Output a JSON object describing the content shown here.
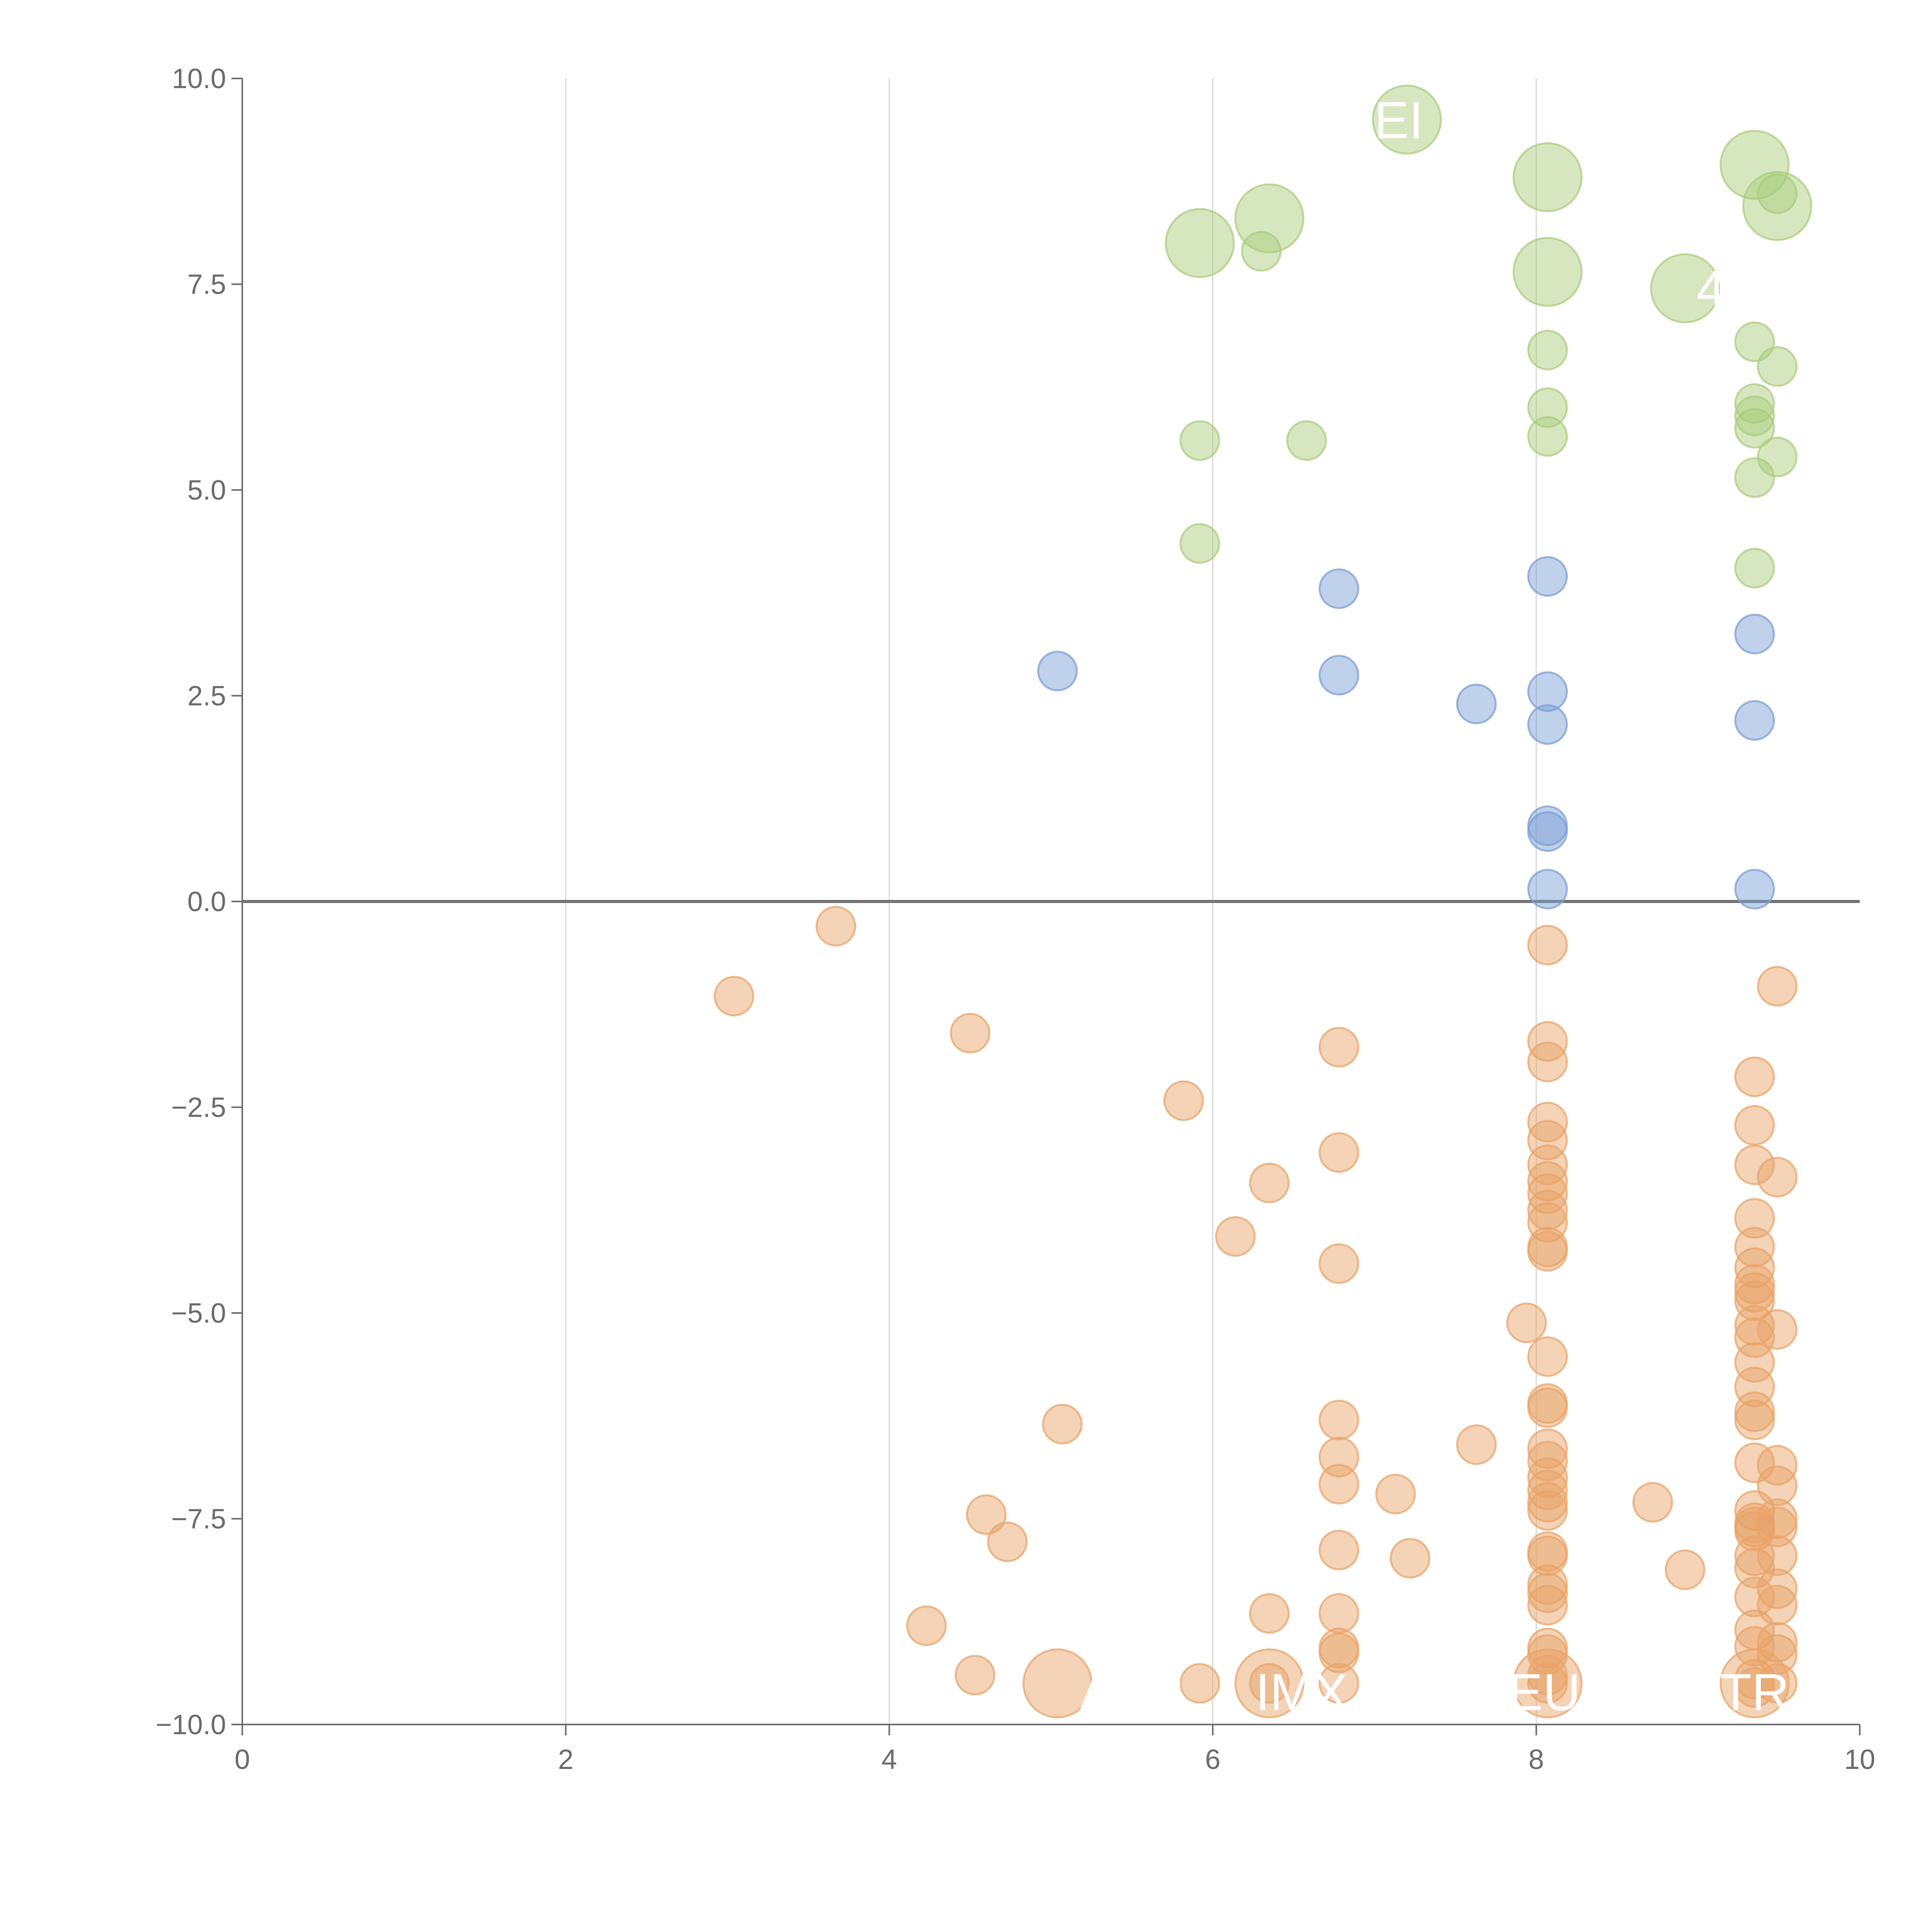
{
  "chart_data": {
    "type": "scatter",
    "title": "",
    "xlabel": "",
    "ylabel": "",
    "xlim": [
      0,
      10
    ],
    "ylim": [
      -10,
      10
    ],
    "x_ticks": [
      0,
      2,
      4,
      6,
      8,
      10
    ],
    "y_ticks": [
      10,
      7.5,
      5,
      2.5,
      0,
      -2.5,
      -5,
      -7.5,
      -10
    ],
    "x_tick_labels": [
      "0",
      "2",
      "4",
      "6",
      "8",
      "10"
    ],
    "y_tick_labels": [
      "10.0",
      "7.5",
      "5.0",
      "2.5",
      "0.0",
      "−2.5",
      "−5.0",
      "−7.5",
      "−10.0"
    ],
    "vertical_grid": [
      2,
      4,
      6,
      8
    ],
    "zero_line": 0,
    "colors": {
      "green": "#a9cd7c",
      "blue": "#7b9fd6",
      "orange": "#e9a468"
    },
    "series": [
      {
        "name": "green",
        "color_key": "green",
        "size": "small",
        "points": [
          [
            6.3,
            7.9
          ],
          [
            5.92,
            5.6
          ],
          [
            6.58,
            5.6
          ],
          [
            5.92,
            4.35
          ],
          [
            8.07,
            6.7
          ],
          [
            8.07,
            6.0
          ],
          [
            8.07,
            5.65
          ],
          [
            9.35,
            6.8
          ],
          [
            9.49,
            6.5
          ],
          [
            9.35,
            6.05
          ],
          [
            9.35,
            5.9
          ],
          [
            9.35,
            5.75
          ],
          [
            9.49,
            5.4
          ],
          [
            9.35,
            5.15
          ],
          [
            9.35,
            4.05
          ],
          [
            9.49,
            8.6
          ]
        ]
      },
      {
        "name": "green-large",
        "color_key": "green",
        "size": "large",
        "points": [
          [
            7.2,
            9.5
          ],
          [
            8.07,
            8.8
          ],
          [
            9.35,
            8.95
          ],
          [
            9.49,
            8.45
          ],
          [
            6.35,
            8.3
          ],
          [
            5.92,
            8.0
          ],
          [
            8.07,
            7.65
          ],
          [
            8.92,
            7.45
          ]
        ]
      },
      {
        "name": "blue",
        "color_key": "blue",
        "size": "small",
        "points": [
          [
            5.04,
            2.8
          ],
          [
            6.78,
            3.8
          ],
          [
            6.78,
            2.75
          ],
          [
            7.63,
            2.4
          ],
          [
            8.07,
            3.95
          ],
          [
            8.07,
            2.55
          ],
          [
            8.07,
            2.15
          ],
          [
            8.07,
            0.92
          ],
          [
            8.07,
            0.85
          ],
          [
            8.07,
            0.15
          ],
          [
            9.35,
            3.25
          ],
          [
            9.35,
            2.2
          ],
          [
            9.35,
            0.15
          ]
        ]
      },
      {
        "name": "orange",
        "color_key": "orange",
        "size": "small",
        "points": [
          [
            3.67,
            -0.3
          ],
          [
            3.04,
            -1.15
          ],
          [
            4.5,
            -1.6
          ],
          [
            5.82,
            -2.42
          ],
          [
            6.35,
            -3.42
          ],
          [
            6.14,
            -4.07
          ],
          [
            6.78,
            -1.77
          ],
          [
            6.78,
            -3.05
          ],
          [
            6.78,
            -4.4
          ],
          [
            6.78,
            -6.3
          ],
          [
            6.78,
            -6.75
          ],
          [
            6.78,
            -7.08
          ],
          [
            6.78,
            -7.88
          ],
          [
            6.78,
            -8.65
          ],
          [
            6.78,
            -9.07
          ],
          [
            6.78,
            -9.13
          ],
          [
            6.78,
            -9.5
          ],
          [
            5.07,
            -6.35
          ],
          [
            4.6,
            -7.45
          ],
          [
            4.73,
            -7.78
          ],
          [
            4.23,
            -8.8
          ],
          [
            4.53,
            -9.4
          ],
          [
            5.92,
            -9.5
          ],
          [
            6.35,
            -8.65
          ],
          [
            6.35,
            -9.5
          ],
          [
            7.63,
            -6.6
          ],
          [
            7.13,
            -7.2
          ],
          [
            7.22,
            -7.98
          ],
          [
            7.94,
            -5.12
          ],
          [
            8.07,
            -0.53
          ],
          [
            8.07,
            -1.7
          ],
          [
            8.07,
            -1.95
          ],
          [
            8.07,
            -2.68
          ],
          [
            8.07,
            -2.9
          ],
          [
            8.07,
            -3.2
          ],
          [
            8.07,
            -3.4
          ],
          [
            8.07,
            -3.55
          ],
          [
            8.07,
            -3.75
          ],
          [
            8.07,
            -3.9
          ],
          [
            8.07,
            -4.2
          ],
          [
            8.07,
            -4.25
          ],
          [
            8.07,
            -5.53
          ],
          [
            8.07,
            -6.1
          ],
          [
            8.07,
            -6.15
          ],
          [
            8.07,
            -6.65
          ],
          [
            8.07,
            -6.8
          ],
          [
            8.07,
            -7.0
          ],
          [
            8.07,
            -7.15
          ],
          [
            8.07,
            -7.3
          ],
          [
            8.07,
            -7.4
          ],
          [
            8.07,
            -7.9
          ],
          [
            8.07,
            -7.95
          ],
          [
            8.07,
            -8.3
          ],
          [
            8.07,
            -8.4
          ],
          [
            8.07,
            -8.55
          ],
          [
            8.07,
            -9.07
          ],
          [
            8.07,
            -9.15
          ],
          [
            8.07,
            -9.4
          ],
          [
            8.07,
            -9.5
          ],
          [
            8.72,
            -7.3
          ],
          [
            8.92,
            -8.12
          ],
          [
            9.35,
            -2.13
          ],
          [
            9.35,
            -2.72
          ],
          [
            9.35,
            -3.2
          ],
          [
            9.35,
            -3.85
          ],
          [
            9.35,
            -4.2
          ],
          [
            9.35,
            -4.45
          ],
          [
            9.35,
            -4.65
          ],
          [
            9.35,
            -4.75
          ],
          [
            9.35,
            -4.85
          ],
          [
            9.35,
            -5.15
          ],
          [
            9.35,
            -5.3
          ],
          [
            9.35,
            -5.6
          ],
          [
            9.35,
            -5.9
          ],
          [
            9.35,
            -6.2
          ],
          [
            9.35,
            -6.3
          ],
          [
            9.35,
            -6.82
          ],
          [
            9.35,
            -7.4
          ],
          [
            9.35,
            -7.55
          ],
          [
            9.35,
            -7.6
          ],
          [
            9.35,
            -7.65
          ],
          [
            9.35,
            -7.95
          ],
          [
            9.35,
            -8.1
          ],
          [
            9.35,
            -8.45
          ],
          [
            9.35,
            -8.85
          ],
          [
            9.35,
            -9.05
          ],
          [
            9.35,
            -9.45
          ],
          [
            9.35,
            -9.55
          ],
          [
            9.49,
            -1.03
          ],
          [
            9.49,
            -3.35
          ],
          [
            9.49,
            -5.2
          ],
          [
            9.49,
            -6.85
          ],
          [
            9.49,
            -7.1
          ],
          [
            9.49,
            -7.5
          ],
          [
            9.49,
            -7.6
          ],
          [
            9.49,
            -7.95
          ],
          [
            9.49,
            -8.35
          ],
          [
            9.49,
            -8.55
          ],
          [
            9.49,
            -9.0
          ],
          [
            9.49,
            -9.15
          ],
          [
            9.49,
            -9.5
          ]
        ]
      },
      {
        "name": "orange-large",
        "color_key": "orange",
        "size": "large",
        "points": [
          [
            5.04,
            -9.5
          ],
          [
            6.35,
            -9.5
          ],
          [
            8.07,
            -9.5
          ],
          [
            9.35,
            -9.5
          ]
        ]
      }
    ],
    "annotations": [
      {
        "text": "EI",
        "x": 7.15,
        "y": 9.5,
        "anchor": "middle"
      },
      {
        "text": "4",
        "x": 9.08,
        "y": 7.45,
        "anchor": "middle"
      },
      {
        "text": "AFR",
        "x": 5.5,
        "y": -9.6,
        "anchor": "middle"
      },
      {
        "text": "IMX",
        "x": 6.55,
        "y": -9.6,
        "anchor": "middle"
      },
      {
        "text": "EU",
        "x": 8.05,
        "y": -9.6,
        "anchor": "middle"
      },
      {
        "text": "TR",
        "x": 9.35,
        "y": -9.6,
        "anchor": "middle"
      }
    ]
  }
}
